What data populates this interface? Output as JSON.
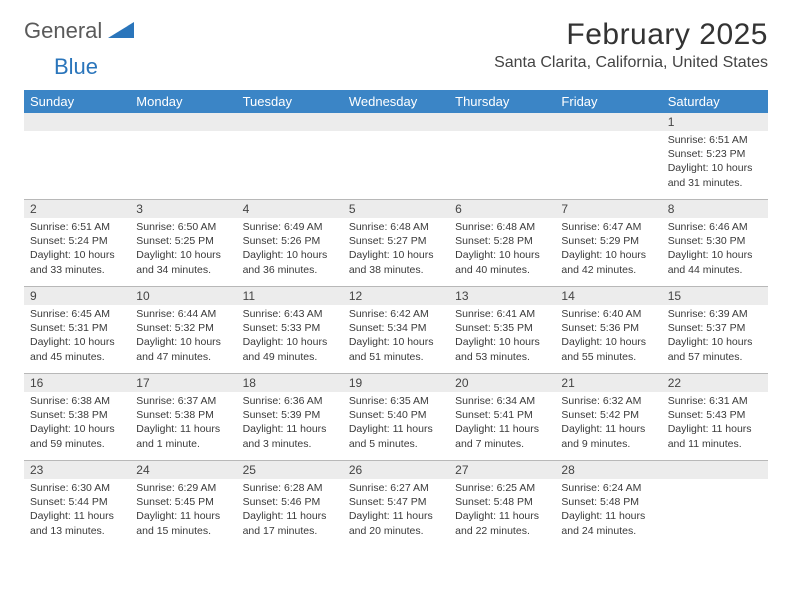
{
  "brand": {
    "word1": "General",
    "word2": "Blue"
  },
  "title": "February 2025",
  "location": "Santa Clarita, California, United States",
  "colors": {
    "header_bg": "#3b85c6",
    "header_text": "#ffffff",
    "daynum_bg": "#ececec",
    "row_border": "#b8b8b8",
    "body_text": "#3a3a3a",
    "brand_blue": "#2a75bb",
    "page_bg": "#ffffff"
  },
  "day_names": [
    "Sunday",
    "Monday",
    "Tuesday",
    "Wednesday",
    "Thursday",
    "Friday",
    "Saturday"
  ],
  "weeks": [
    [
      {
        "n": "",
        "lines": []
      },
      {
        "n": "",
        "lines": []
      },
      {
        "n": "",
        "lines": []
      },
      {
        "n": "",
        "lines": []
      },
      {
        "n": "",
        "lines": []
      },
      {
        "n": "",
        "lines": []
      },
      {
        "n": "1",
        "lines": [
          "Sunrise: 6:51 AM",
          "Sunset: 5:23 PM",
          "Daylight: 10 hours and 31 minutes."
        ]
      }
    ],
    [
      {
        "n": "2",
        "lines": [
          "Sunrise: 6:51 AM",
          "Sunset: 5:24 PM",
          "Daylight: 10 hours and 33 minutes."
        ]
      },
      {
        "n": "3",
        "lines": [
          "Sunrise: 6:50 AM",
          "Sunset: 5:25 PM",
          "Daylight: 10 hours and 34 minutes."
        ]
      },
      {
        "n": "4",
        "lines": [
          "Sunrise: 6:49 AM",
          "Sunset: 5:26 PM",
          "Daylight: 10 hours and 36 minutes."
        ]
      },
      {
        "n": "5",
        "lines": [
          "Sunrise: 6:48 AM",
          "Sunset: 5:27 PM",
          "Daylight: 10 hours and 38 minutes."
        ]
      },
      {
        "n": "6",
        "lines": [
          "Sunrise: 6:48 AM",
          "Sunset: 5:28 PM",
          "Daylight: 10 hours and 40 minutes."
        ]
      },
      {
        "n": "7",
        "lines": [
          "Sunrise: 6:47 AM",
          "Sunset: 5:29 PM",
          "Daylight: 10 hours and 42 minutes."
        ]
      },
      {
        "n": "8",
        "lines": [
          "Sunrise: 6:46 AM",
          "Sunset: 5:30 PM",
          "Daylight: 10 hours and 44 minutes."
        ]
      }
    ],
    [
      {
        "n": "9",
        "lines": [
          "Sunrise: 6:45 AM",
          "Sunset: 5:31 PM",
          "Daylight: 10 hours and 45 minutes."
        ]
      },
      {
        "n": "10",
        "lines": [
          "Sunrise: 6:44 AM",
          "Sunset: 5:32 PM",
          "Daylight: 10 hours and 47 minutes."
        ]
      },
      {
        "n": "11",
        "lines": [
          "Sunrise: 6:43 AM",
          "Sunset: 5:33 PM",
          "Daylight: 10 hours and 49 minutes."
        ]
      },
      {
        "n": "12",
        "lines": [
          "Sunrise: 6:42 AM",
          "Sunset: 5:34 PM",
          "Daylight: 10 hours and 51 minutes."
        ]
      },
      {
        "n": "13",
        "lines": [
          "Sunrise: 6:41 AM",
          "Sunset: 5:35 PM",
          "Daylight: 10 hours and 53 minutes."
        ]
      },
      {
        "n": "14",
        "lines": [
          "Sunrise: 6:40 AM",
          "Sunset: 5:36 PM",
          "Daylight: 10 hours and 55 minutes."
        ]
      },
      {
        "n": "15",
        "lines": [
          "Sunrise: 6:39 AM",
          "Sunset: 5:37 PM",
          "Daylight: 10 hours and 57 minutes."
        ]
      }
    ],
    [
      {
        "n": "16",
        "lines": [
          "Sunrise: 6:38 AM",
          "Sunset: 5:38 PM",
          "Daylight: 10 hours and 59 minutes."
        ]
      },
      {
        "n": "17",
        "lines": [
          "Sunrise: 6:37 AM",
          "Sunset: 5:38 PM",
          "Daylight: 11 hours and 1 minute."
        ]
      },
      {
        "n": "18",
        "lines": [
          "Sunrise: 6:36 AM",
          "Sunset: 5:39 PM",
          "Daylight: 11 hours and 3 minutes."
        ]
      },
      {
        "n": "19",
        "lines": [
          "Sunrise: 6:35 AM",
          "Sunset: 5:40 PM",
          "Daylight: 11 hours and 5 minutes."
        ]
      },
      {
        "n": "20",
        "lines": [
          "Sunrise: 6:34 AM",
          "Sunset: 5:41 PM",
          "Daylight: 11 hours and 7 minutes."
        ]
      },
      {
        "n": "21",
        "lines": [
          "Sunrise: 6:32 AM",
          "Sunset: 5:42 PM",
          "Daylight: 11 hours and 9 minutes."
        ]
      },
      {
        "n": "22",
        "lines": [
          "Sunrise: 6:31 AM",
          "Sunset: 5:43 PM",
          "Daylight: 11 hours and 11 minutes."
        ]
      }
    ],
    [
      {
        "n": "23",
        "lines": [
          "Sunrise: 6:30 AM",
          "Sunset: 5:44 PM",
          "Daylight: 11 hours and 13 minutes."
        ]
      },
      {
        "n": "24",
        "lines": [
          "Sunrise: 6:29 AM",
          "Sunset: 5:45 PM",
          "Daylight: 11 hours and 15 minutes."
        ]
      },
      {
        "n": "25",
        "lines": [
          "Sunrise: 6:28 AM",
          "Sunset: 5:46 PM",
          "Daylight: 11 hours and 17 minutes."
        ]
      },
      {
        "n": "26",
        "lines": [
          "Sunrise: 6:27 AM",
          "Sunset: 5:47 PM",
          "Daylight: 11 hours and 20 minutes."
        ]
      },
      {
        "n": "27",
        "lines": [
          "Sunrise: 6:25 AM",
          "Sunset: 5:48 PM",
          "Daylight: 11 hours and 22 minutes."
        ]
      },
      {
        "n": "28",
        "lines": [
          "Sunrise: 6:24 AM",
          "Sunset: 5:48 PM",
          "Daylight: 11 hours and 24 minutes."
        ]
      },
      {
        "n": "",
        "lines": []
      }
    ]
  ]
}
